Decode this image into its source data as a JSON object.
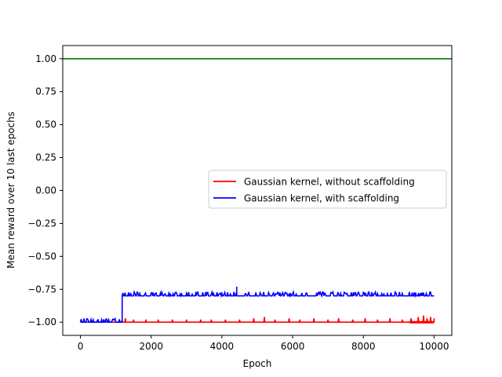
{
  "chart_data": {
    "type": "line",
    "xlabel": "Epoch",
    "ylabel": "Mean reward over 10 last epochs",
    "xlim": [
      -500,
      10500
    ],
    "ylim": [
      -1.1,
      1.1
    ],
    "xticks": [
      0,
      2000,
      4000,
      6000,
      8000,
      10000
    ],
    "xtick_labels": [
      "0",
      "2000",
      "4000",
      "6000",
      "8000",
      "10000"
    ],
    "yticks": [
      -1.0,
      -0.75,
      -0.5,
      -0.25,
      0.0,
      0.25,
      0.5,
      0.75,
      1.0
    ],
    "ytick_labels": [
      "−1.00",
      "−0.75",
      "−0.50",
      "−0.25",
      "0.00",
      "0.25",
      "0.50",
      "0.75",
      "1.00"
    ],
    "grid": false,
    "legend_position": "center-right",
    "series": [
      {
        "name": "Gaussian kernel, without scaffolding",
        "color": "#ff0000",
        "in_legend": true,
        "baseline": -1.0,
        "x_start": 0,
        "x_end": 10000,
        "spikes": [
          {
            "x": 1270,
            "y": -0.97
          },
          {
            "x": 1500,
            "y": -0.98
          },
          {
            "x": 1850,
            "y": -0.98
          },
          {
            "x": 2200,
            "y": -0.98
          },
          {
            "x": 2600,
            "y": -0.98
          },
          {
            "x": 3000,
            "y": -0.98
          },
          {
            "x": 3400,
            "y": -0.98
          },
          {
            "x": 3700,
            "y": -0.98
          },
          {
            "x": 4100,
            "y": -0.98
          },
          {
            "x": 4500,
            "y": -0.98
          },
          {
            "x": 4900,
            "y": -0.97
          },
          {
            "x": 5200,
            "y": -0.96
          },
          {
            "x": 5500,
            "y": -0.98
          },
          {
            "x": 5900,
            "y": -0.97
          },
          {
            "x": 6200,
            "y": -0.98
          },
          {
            "x": 6600,
            "y": -0.97
          },
          {
            "x": 7000,
            "y": -0.98
          },
          {
            "x": 7300,
            "y": -0.97
          },
          {
            "x": 7700,
            "y": -0.98
          },
          {
            "x": 8050,
            "y": -0.97
          },
          {
            "x": 8400,
            "y": -0.98
          },
          {
            "x": 8750,
            "y": -0.97
          },
          {
            "x": 9100,
            "y": -0.98
          },
          {
            "x": 9350,
            "y": -0.97
          },
          {
            "x": 9550,
            "y": -0.96
          },
          {
            "x": 9700,
            "y": -0.95
          },
          {
            "x": 9800,
            "y": -0.97
          },
          {
            "x": 9900,
            "y": -0.96
          }
        ]
      },
      {
        "name": "Gaussian kernel, with scaffolding",
        "color": "#0000ff",
        "in_legend": true,
        "phases": [
          {
            "x_start": 0,
            "x_end": 1180,
            "baseline": -1.0,
            "spike_max": -0.97
          },
          {
            "x_start": 1180,
            "x_end": 10000,
            "baseline": -0.8,
            "spike_max": -0.77
          }
        ],
        "peak": {
          "x": 4420,
          "y": -0.73
        }
      },
      {
        "name": "",
        "color": "#008000",
        "in_legend": false,
        "x": [
          -500,
          10500
        ],
        "values": [
          1.0,
          1.0
        ]
      }
    ]
  }
}
